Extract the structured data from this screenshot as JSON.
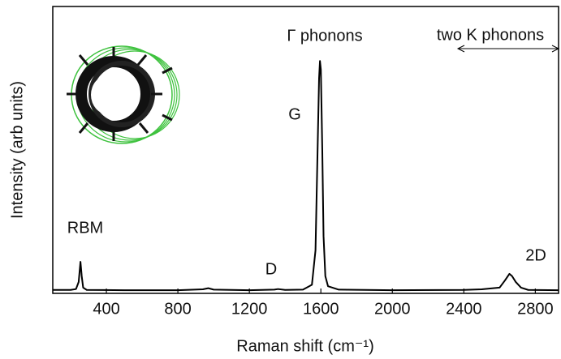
{
  "chart_data": {
    "type": "line",
    "xlabel": "Raman shift (cm⁻¹)",
    "ylabel": "Intensity (arb units)",
    "annotations": [
      "RBM",
      "D",
      "G",
      "Γ phonons",
      "2D",
      "two K phonons"
    ],
    "xlim": [
      100,
      2930
    ],
    "xticks": [
      400,
      800,
      1200,
      1600,
      2000,
      2400,
      2800
    ],
    "ylim": [
      0,
      1
    ],
    "series": [
      {
        "color": "#000000",
        "x": [
          100,
          200,
          230,
          245,
          255,
          262,
          270,
          290,
          500,
          800,
          940,
          970,
          1000,
          1200,
          1340,
          1360,
          1400,
          1500,
          1550,
          1570,
          1580,
          1590,
          1595,
          1600,
          1608,
          1615,
          1625,
          1640,
          1700,
          2000,
          2400,
          2500,
          2600,
          2630,
          2655,
          2670,
          2690,
          2720,
          2760,
          2930
        ],
        "values": [
          0.012,
          0.012,
          0.015,
          0.04,
          0.11,
          0.06,
          0.02,
          0.012,
          0.011,
          0.011,
          0.014,
          0.018,
          0.013,
          0.011,
          0.013,
          0.015,
          0.012,
          0.013,
          0.03,
          0.15,
          0.45,
          0.75,
          0.81,
          0.78,
          0.5,
          0.2,
          0.06,
          0.025,
          0.013,
          0.011,
          0.012,
          0.014,
          0.02,
          0.045,
          0.068,
          0.06,
          0.04,
          0.02,
          0.012,
          0.011
        ]
      }
    ]
  }
}
